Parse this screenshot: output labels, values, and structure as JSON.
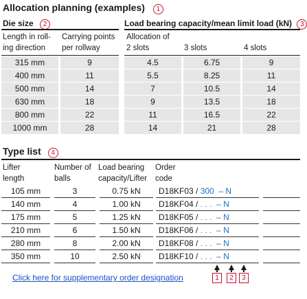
{
  "allocation": {
    "title": "Allocation planning (examples)",
    "title_marker": "1",
    "die_size": {
      "label": "Die size",
      "marker": "2"
    },
    "load": {
      "label": "Load bearing capacity/mean limit load (kN)",
      "marker": "3"
    },
    "columns": {
      "length": "Length in roll-ing direction",
      "carrying": "Carrying points per rollway",
      "allocation_of": "Allocation of",
      "slots2": "2 slots",
      "slots3": "3 slots",
      "slots4": "4 slots"
    },
    "rows": [
      [
        "315 mm",
        "9",
        "4.5",
        "6.75",
        "9"
      ],
      [
        "400 mm",
        "11",
        "5.5",
        "8.25",
        "11"
      ],
      [
        "500 mm",
        "14",
        "7",
        "10.5",
        "14"
      ],
      [
        "630 mm",
        "18",
        "9",
        "13.5",
        "18"
      ],
      [
        "800 mm",
        "22",
        "11",
        "16.5",
        "22"
      ],
      [
        "1000 mm",
        "28",
        "14",
        "21",
        "28"
      ]
    ]
  },
  "types": {
    "title": "Type list",
    "title_marker": "4",
    "columns": {
      "lifter": "Lifter length",
      "balls": "Number of balls",
      "load": "Load bearing capacity/Lifter",
      "order": "Order code"
    },
    "rows": [
      {
        "length": "105 mm",
        "balls": "3",
        "load": "0.75 kN",
        "prefix": "D18KF03 /",
        "mid": " 300 ",
        "dash": " – ",
        "suffix": "N"
      },
      {
        "length": "140 mm",
        "balls": "4",
        "load": "1.00 kN",
        "prefix": "D18KF04 /",
        "mid": " . . . ",
        "dash": " – ",
        "suffix": "N"
      },
      {
        "length": "175 mm",
        "balls": "5",
        "load": "1.25 kN",
        "prefix": "D18KF05 /",
        "mid": " . . . ",
        "dash": " – ",
        "suffix": "N"
      },
      {
        "length": "210 mm",
        "balls": "6",
        "load": "1.50 kN",
        "prefix": "D18KF06 /",
        "mid": " . . . ",
        "dash": " – ",
        "suffix": "N"
      },
      {
        "length": "280 mm",
        "balls": "8",
        "load": "2.00 kN",
        "prefix": "D18KF08 /",
        "mid": " . . . ",
        "dash": " – ",
        "suffix": "N"
      },
      {
        "length": "350 mm",
        "balls": "10",
        "load": "2.50 kN",
        "prefix": "D18KF10 /",
        "mid": " . . . ",
        "dash": " – ",
        "suffix": "N"
      }
    ],
    "markers": [
      "1",
      "2",
      "3"
    ]
  },
  "link": "Click here for supplementary order designation"
}
